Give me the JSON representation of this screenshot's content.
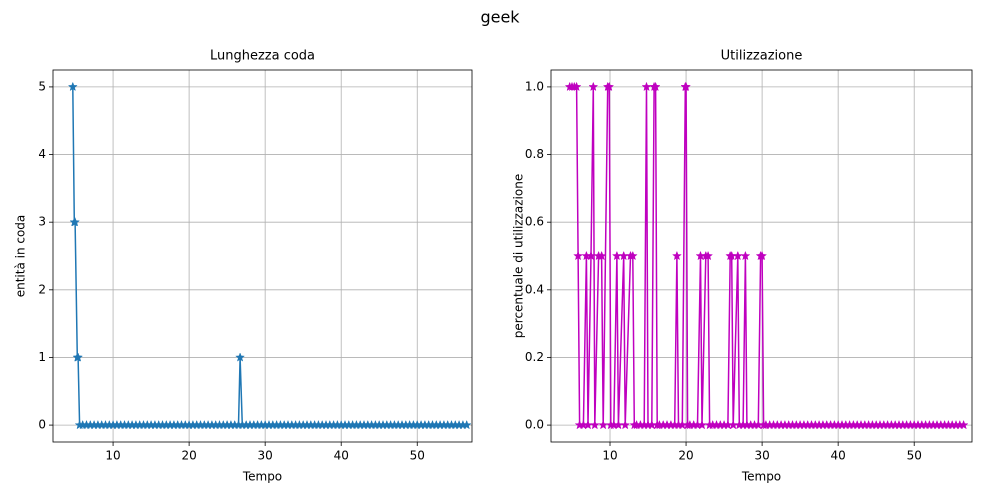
{
  "title": "geek",
  "chart_data": [
    {
      "type": "line",
      "title": "Lunghezza coda",
      "xlabel": "Tempo",
      "ylabel": "entità in coda",
      "x": [
        4.7,
        4.9,
        5.0,
        5.3,
        5.4,
        5.6,
        6,
        6.5,
        7,
        7.5,
        8,
        8.5,
        9,
        9.5,
        10,
        10.5,
        11,
        11.5,
        12,
        12.5,
        13,
        13.5,
        14,
        14.5,
        15,
        15.5,
        16,
        16.5,
        17,
        17.5,
        18,
        18.5,
        19,
        19.5,
        20,
        20.5,
        21,
        21.5,
        22,
        22.5,
        23,
        23.5,
        24,
        24.5,
        25,
        25.5,
        26,
        26.5,
        26.7,
        27,
        27.5,
        28,
        28.5,
        29,
        29.5,
        30,
        30.5,
        31,
        31.5,
        32,
        32.5,
        33,
        33.5,
        34,
        34.5,
        35,
        35.5,
        36,
        36.5,
        37,
        37.5,
        38,
        38.5,
        39,
        39.5,
        40,
        40.5,
        41,
        41.5,
        42,
        42.5,
        43,
        43.5,
        44,
        44.5,
        45,
        45.5,
        46,
        46.5,
        47,
        47.5,
        48,
        48.5,
        49,
        49.5,
        50,
        50.5,
        51,
        51.5,
        52,
        52.5,
        53,
        53.5,
        54,
        54.5,
        55,
        55.5,
        56,
        56.5
      ],
      "series": [
        {
          "color": "#1f77b4",
          "marker": "star",
          "values": [
            5,
            3,
            3,
            1,
            1,
            0,
            0,
            0,
            0,
            0,
            0,
            0,
            0,
            0,
            0,
            0,
            0,
            0,
            0,
            0,
            0,
            0,
            0,
            0,
            0,
            0,
            0,
            0,
            0,
            0,
            0,
            0,
            0,
            0,
            0,
            0,
            0,
            0,
            0,
            0,
            0,
            0,
            0,
            0,
            0,
            0,
            0,
            0,
            1,
            0,
            0,
            0,
            0,
            0,
            0,
            0,
            0,
            0,
            0,
            0,
            0,
            0,
            0,
            0,
            0,
            0,
            0,
            0,
            0,
            0,
            0,
            0,
            0,
            0,
            0,
            0,
            0,
            0,
            0,
            0,
            0,
            0,
            0,
            0,
            0,
            0,
            0,
            0,
            0,
            0,
            0,
            0,
            0,
            0,
            0,
            0,
            0,
            0,
            0,
            0,
            0,
            0,
            0,
            0,
            0,
            0,
            0,
            0,
            0
          ]
        }
      ],
      "xlim": [
        2.1,
        57.2
      ],
      "ylim": [
        -0.25,
        5.25
      ],
      "xticks": [
        10,
        20,
        30,
        40,
        50
      ],
      "yticks": [
        0,
        1,
        2,
        3,
        4,
        5
      ],
      "grid": true
    },
    {
      "type": "line",
      "title": "Utilizzazione",
      "xlabel": "Tempo",
      "ylabel": "percentuale di utilizzazione",
      "x": [
        4.7,
        5.0,
        5.3,
        5.6,
        5.8,
        6.0,
        6.5,
        6.9,
        7.1,
        7.5,
        7.8,
        8.0,
        8.5,
        8.9,
        9.1,
        9.7,
        9.9,
        10.1,
        10.5,
        10.9,
        11.1,
        11.8,
        12.0,
        12.7,
        13.0,
        13.2,
        13.5,
        14.0,
        14.5,
        14.8,
        15.0,
        15.5,
        15.8,
        16.0,
        16.2,
        16.5,
        17,
        17.5,
        18,
        18.5,
        18.8,
        19.0,
        19.5,
        19.9,
        20.0,
        20.2,
        20.5,
        21,
        21.5,
        21.9,
        22.1,
        22.6,
        22.9,
        23.1,
        23.5,
        24,
        24.5,
        25,
        25.5,
        25.8,
        26.0,
        26.2,
        26.8,
        27.0,
        27.5,
        27.8,
        28.0,
        28.5,
        29,
        29.5,
        29.8,
        30.0,
        30.2,
        30.5,
        31,
        31.5,
        32,
        32.5,
        33,
        33.5,
        34,
        34.5,
        35,
        35.5,
        36,
        36.5,
        37,
        37.5,
        38,
        38.5,
        39,
        39.5,
        40,
        40.5,
        41,
        41.5,
        42,
        42.5,
        43,
        43.5,
        44,
        44.5,
        45,
        45.5,
        46,
        46.5,
        47,
        47.5,
        48,
        48.5,
        49,
        49.5,
        50,
        50.5,
        51,
        51.5,
        52,
        52.5,
        53,
        53.5,
        54,
        54.5,
        55,
        55.5,
        56,
        56.5
      ],
      "series": [
        {
          "color": "#bf00bf",
          "marker": "star",
          "values": [
            1,
            1,
            1,
            1,
            0.5,
            0,
            0,
            0.5,
            0,
            0.5,
            1,
            0,
            0.5,
            0.5,
            0,
            1,
            1,
            0,
            0,
            0.5,
            0,
            0.5,
            0,
            0.5,
            0.5,
            0,
            0,
            0,
            0,
            1,
            0,
            0,
            1,
            1,
            0,
            0,
            0,
            0,
            0,
            0,
            0.5,
            0,
            0,
            1,
            1,
            0,
            0,
            0,
            0,
            0.5,
            0,
            0.5,
            0.5,
            0,
            0,
            0,
            0,
            0,
            0,
            0.5,
            0.5,
            0,
            0.5,
            0,
            0,
            0.5,
            0,
            0,
            0,
            0,
            0.5,
            0.5,
            0,
            0,
            0,
            0,
            0,
            0,
            0,
            0,
            0,
            0,
            0,
            0,
            0,
            0,
            0,
            0,
            0,
            0,
            0,
            0,
            0,
            0,
            0,
            0,
            0,
            0,
            0,
            0,
            0,
            0,
            0,
            0,
            0,
            0,
            0,
            0,
            0,
            0,
            0,
            0,
            0,
            0,
            0,
            0,
            0,
            0,
            0,
            0,
            0,
            0,
            0,
            0,
            0,
            0
          ]
        }
      ],
      "xlim": [
        2.24,
        57.6
      ],
      "ylim": [
        -0.05,
        1.05
      ],
      "xticks": [
        10,
        20,
        30,
        40,
        50
      ],
      "yticks": [
        {
          "value": 0,
          "label": "0.0"
        },
        {
          "value": 0.2,
          "label": "0.2"
        },
        {
          "value": 0.4,
          "label": "0.4"
        },
        {
          "value": 0.6,
          "label": "0.6"
        },
        {
          "value": 0.8,
          "label": "0.8"
        },
        {
          "value": 1,
          "label": "1.0"
        }
      ],
      "grid": true
    }
  ]
}
